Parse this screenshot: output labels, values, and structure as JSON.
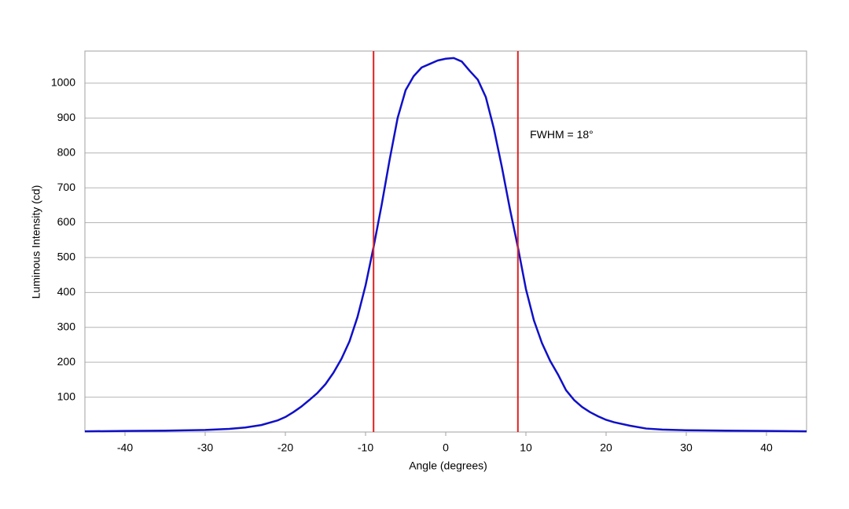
{
  "chart_data": {
    "type": "line",
    "x_label": "Angle (degrees)",
    "y_label": "Luminous Intensity (cd)",
    "x": [
      -45,
      -40,
      -35,
      -30,
      -27,
      -25,
      -23,
      -21,
      -20,
      -19,
      -18,
      -17,
      -16,
      -15,
      -14,
      -13,
      -12,
      -11,
      -10,
      -9,
      -8,
      -7,
      -6,
      -5,
      -4,
      -3,
      -2,
      -1,
      0,
      1,
      2,
      3,
      4,
      5,
      6,
      7,
      8,
      9,
      10,
      11,
      12,
      13,
      14,
      15,
      16,
      17,
      18,
      19,
      20,
      21,
      23,
      25,
      27,
      30,
      35,
      40,
      45
    ],
    "values": [
      2,
      3,
      4,
      6,
      9,
      13,
      20,
      33,
      43,
      57,
      73,
      92,
      112,
      137,
      170,
      210,
      260,
      330,
      420,
      530,
      650,
      780,
      900,
      980,
      1020,
      1045,
      1055,
      1065,
      1070,
      1072,
      1062,
      1035,
      1010,
      960,
      870,
      760,
      640,
      530,
      410,
      320,
      255,
      205,
      165,
      120,
      92,
      72,
      57,
      45,
      35,
      28,
      18,
      10,
      7,
      5,
      4,
      3,
      2
    ],
    "color": "#1010c8",
    "xlim": [
      -45,
      45
    ],
    "ylim": [
      0,
      1092
    ],
    "xticks": [
      -40,
      -30,
      -20,
      -10,
      0,
      10,
      20,
      30,
      40
    ],
    "yticks": [
      100,
      200,
      300,
      400,
      500,
      600,
      700,
      800,
      900,
      1000
    ],
    "grid": true,
    "reference_lines": [
      {
        "x": -9,
        "color": "#e02020"
      },
      {
        "x": 9,
        "color": "#e02020"
      }
    ],
    "annotation": {
      "text": "FWHM = 18°",
      "x": 10.5,
      "y": 850
    }
  }
}
